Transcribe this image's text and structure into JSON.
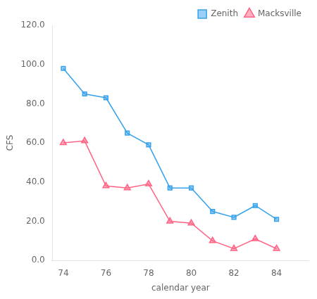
{
  "chart_data": {
    "type": "line",
    "x": [
      74,
      75,
      76,
      77,
      78,
      79,
      80,
      81,
      82,
      83,
      84
    ],
    "series": [
      {
        "name": "Zenith",
        "values": [
          98,
          85,
          83,
          65,
          59,
          37,
          37,
          25,
          22,
          28,
          21
        ],
        "marker": "square"
      },
      {
        "name": "Macksville",
        "values": [
          60,
          61,
          38,
          37,
          39,
          20,
          19,
          10,
          6,
          11,
          6
        ],
        "marker": "triangle"
      }
    ],
    "xlabel": "calendar year",
    "ylabel": "CFS",
    "xlim": [
      73.5,
      85.5
    ],
    "ylim": [
      0.0,
      120.0
    ],
    "xticks": [
      74,
      76,
      78,
      80,
      82,
      84
    ],
    "yticks": [
      {
        "value": 0,
        "label": "0.0"
      },
      {
        "value": 20,
        "label": "20.0"
      },
      {
        "value": 40,
        "label": "40.0"
      },
      {
        "value": 60,
        "label": "60.0"
      },
      {
        "value": 80,
        "label": "80.0"
      },
      {
        "value": 100,
        "label": "100.0"
      },
      {
        "value": 120,
        "label": "120.0"
      }
    ],
    "grid": false,
    "legend": "upper right"
  }
}
